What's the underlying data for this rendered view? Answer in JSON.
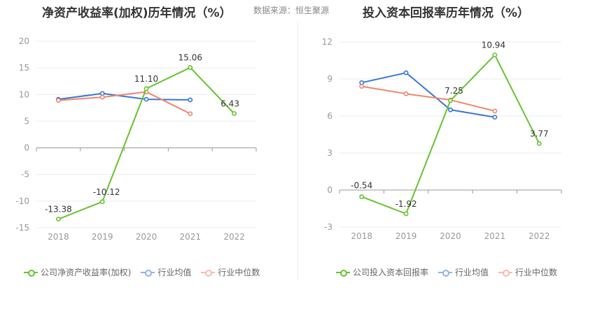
{
  "left": {
    "title": "净资产收益率(加权)历年情况（%）",
    "source": "数据来源：恒生聚源"
  },
  "right": {
    "title": "投入资本回报率历年情况（%）"
  },
  "colors": {
    "company": "#65c42e",
    "avg": "#3a76d8",
    "median": "#f0866a"
  },
  "legend": {
    "left": [
      "公司净资产收益率(加权)",
      "行业均值",
      "行业中位数"
    ],
    "right": [
      "公司投入资本回报率",
      "行业均值",
      "行业中位数"
    ]
  },
  "chart_data": [
    {
      "type": "line",
      "title": "净资产收益率(加权)历年情况（%）",
      "categories": [
        "2018",
        "2019",
        "2020",
        "2021",
        "2022"
      ],
      "ylim": [
        -15,
        20
      ],
      "yticks": [
        -15,
        -10,
        -5,
        0,
        5,
        10,
        15,
        20
      ],
      "grid": true,
      "legend_position": "bottom",
      "series": [
        {
          "name": "公司净资产收益率(加权)",
          "key": "company",
          "values": [
            -13.38,
            -10.12,
            11.1,
            15.06,
            6.43
          ],
          "labels": [
            "-13.38",
            "-10.12",
            "11.10",
            "15.06",
            "6.43"
          ]
        },
        {
          "name": "行业均值",
          "key": "avg",
          "values": [
            9.1,
            10.2,
            9.1,
            9.0,
            null
          ]
        },
        {
          "name": "行业中位数",
          "key": "median",
          "values": [
            8.9,
            9.5,
            10.5,
            6.4,
            null
          ]
        }
      ]
    },
    {
      "type": "line",
      "title": "投入资本回报率历年情况（%）",
      "categories": [
        "2018",
        "2019",
        "2020",
        "2021",
        "2022"
      ],
      "ylim": [
        -3,
        12
      ],
      "yticks": [
        -3,
        0,
        3,
        6,
        9,
        12
      ],
      "grid": true,
      "legend_position": "bottom",
      "series": [
        {
          "name": "公司投入资本回报率",
          "key": "company",
          "values": [
            -0.54,
            -1.92,
            7.25,
            10.94,
            3.77
          ],
          "labels": [
            "-0.54",
            "-1.92",
            "7.25",
            "10.94",
            "3.77"
          ]
        },
        {
          "name": "行业均值",
          "key": "avg",
          "values": [
            8.7,
            9.5,
            6.5,
            5.9,
            null
          ]
        },
        {
          "name": "行业中位数",
          "key": "median",
          "values": [
            8.4,
            7.8,
            7.3,
            6.4,
            null
          ]
        }
      ]
    }
  ]
}
